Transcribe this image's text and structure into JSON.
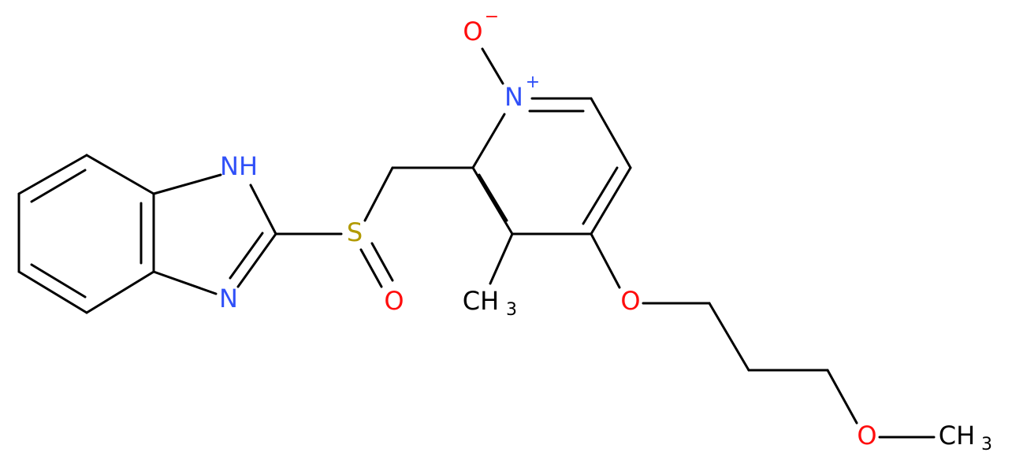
{
  "atoms": [
    {
      "label": "NH"
    },
    {
      "label": "N"
    },
    {
      "label": "S"
    },
    {
      "label": "O"
    },
    {
      "label": "N",
      "charge": "+"
    },
    {
      "label": "O",
      "charge": "−"
    },
    {
      "label": "CH",
      "sub": "3"
    },
    {
      "label": "O"
    },
    {
      "label": "O"
    },
    {
      "label": "CH",
      "sub": "3"
    }
  ]
}
